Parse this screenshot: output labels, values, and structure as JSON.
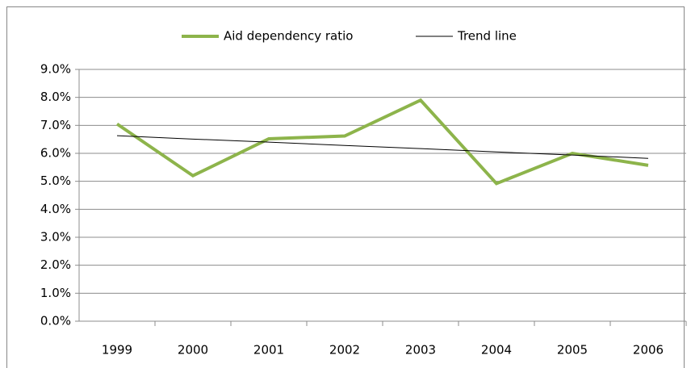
{
  "chart_data": {
    "type": "line",
    "categories": [
      "1999",
      "2000",
      "2001",
      "2002",
      "2003",
      "2004",
      "2005",
      "2006"
    ],
    "series": [
      {
        "name": "Aid dependency ratio",
        "color": "#8db44b",
        "width": 4,
        "values": [
          7.05,
          5.2,
          6.52,
          6.62,
          7.9,
          4.92,
          6.0,
          5.57
        ]
      },
      {
        "name": "Trend line",
        "color": "#000000",
        "width": 1,
        "values": [
          6.63,
          6.51,
          6.4,
          6.28,
          6.17,
          6.05,
          5.94,
          5.82
        ]
      }
    ],
    "ylim": [
      0,
      9
    ],
    "yticks": [
      {
        "value": 0,
        "label": "0.0%"
      },
      {
        "value": 1,
        "label": "1.0%"
      },
      {
        "value": 2,
        "label": "2.0%"
      },
      {
        "value": 3,
        "label": "3.0%"
      },
      {
        "value": 4,
        "label": "4.0%"
      },
      {
        "value": 5,
        "label": "5.0%"
      },
      {
        "value": 6,
        "label": "6.0%"
      },
      {
        "value": 7,
        "label": "7.0%"
      },
      {
        "value": 8,
        "label": "8.0%"
      },
      {
        "value": 9,
        "label": "9.0%"
      }
    ],
    "grid": true,
    "legend": "top"
  }
}
